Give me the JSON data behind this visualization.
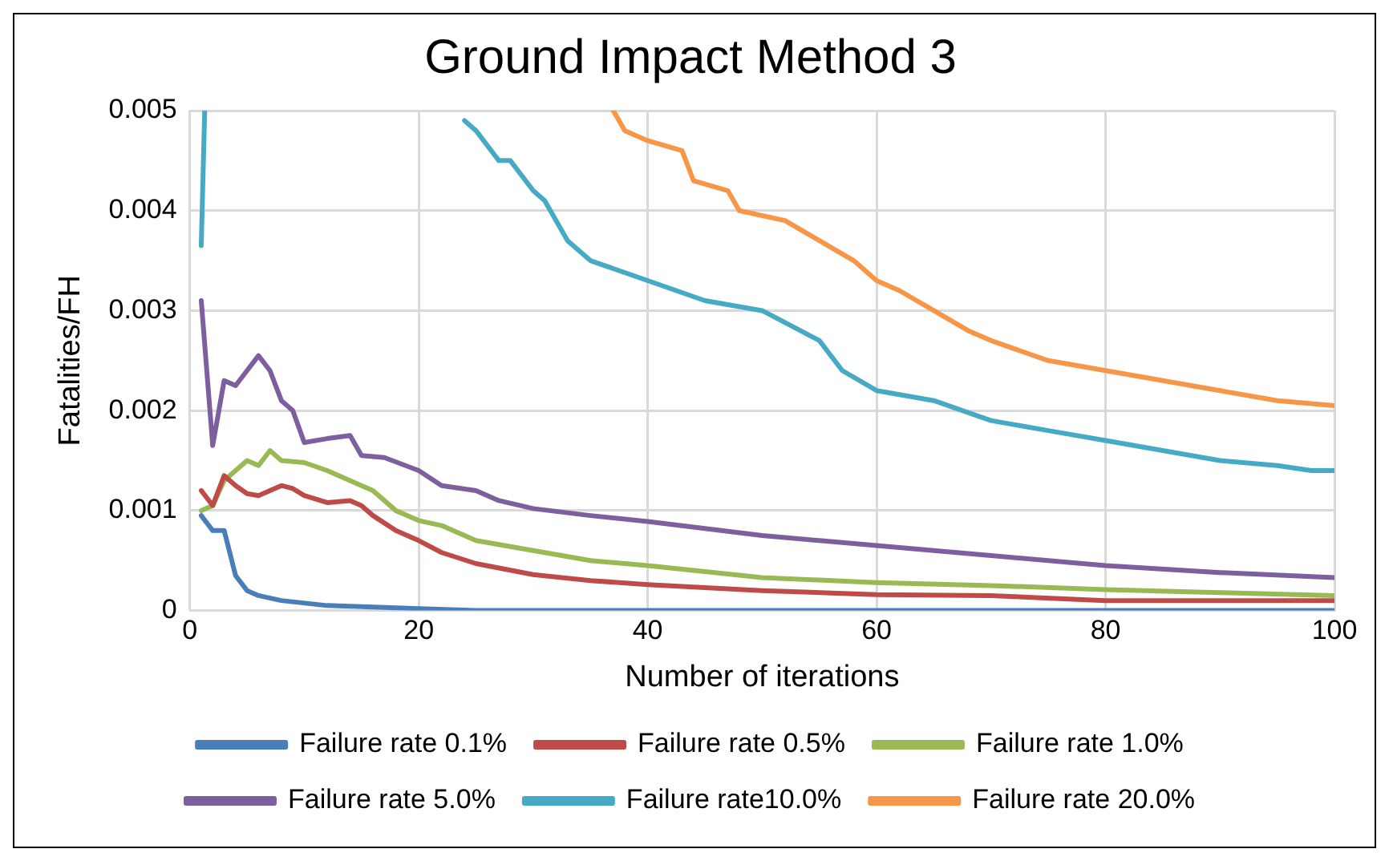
{
  "chart_data": {
    "type": "line",
    "title": "Ground Impact Method 3",
    "xlabel": "Number of iterations",
    "ylabel": "Fatalities/FH",
    "xlim": [
      0,
      100
    ],
    "xticks": [
      0,
      20,
      40,
      60,
      80,
      100
    ],
    "ylim": [
      0,
      0.005
    ],
    "yticks": [
      0,
      0.001,
      0.002,
      0.003,
      0.004,
      0.005
    ],
    "grid": true,
    "legend": "bottom",
    "marker": "none",
    "line_style": "solid",
    "series": [
      {
        "name": "Failure rate 0.1%",
        "color": "#4a7ebb",
        "x": [
          1,
          2,
          3,
          4,
          5,
          6,
          8,
          12,
          25,
          100
        ],
        "values": [
          0.00095,
          0.0008,
          0.0008,
          0.00035,
          0.0002,
          0.00015,
          0.0001,
          5e-05,
          0,
          0
        ]
      },
      {
        "name": "Failure rate 0.5%",
        "color": "#be4b48",
        "x": [
          1,
          2,
          3,
          4,
          5,
          6,
          7,
          8,
          9,
          10,
          12,
          14,
          15,
          16,
          18,
          20,
          22,
          25,
          30,
          35,
          40,
          50,
          60,
          70,
          80,
          90,
          100
        ],
        "values": [
          0.0012,
          0.00105,
          0.00135,
          0.00125,
          0.00117,
          0.00115,
          0.0012,
          0.00125,
          0.00122,
          0.00115,
          0.00108,
          0.0011,
          0.00105,
          0.00095,
          0.0008,
          0.0007,
          0.00058,
          0.00047,
          0.00036,
          0.0003,
          0.00026,
          0.0002,
          0.00016,
          0.00015,
          0.0001,
          0.0001,
          0.0001
        ]
      },
      {
        "name": "Failure rate 1.0%",
        "color": "#98b954",
        "x": [
          1,
          2,
          3,
          4,
          5,
          6,
          7,
          8,
          10,
          12,
          14,
          16,
          18,
          20,
          22,
          25,
          30,
          35,
          40,
          50,
          60,
          70,
          80,
          90,
          100
        ],
        "values": [
          0.001,
          0.00105,
          0.0013,
          0.0014,
          0.0015,
          0.00145,
          0.0016,
          0.0015,
          0.00148,
          0.0014,
          0.0013,
          0.0012,
          0.001,
          0.0009,
          0.00085,
          0.0007,
          0.0006,
          0.0005,
          0.00045,
          0.00033,
          0.00028,
          0.00025,
          0.00021,
          0.00018,
          0.00015
        ]
      },
      {
        "name": "Failure rate 5.0%",
        "color": "#7d5fa0",
        "x": [
          1,
          2,
          3,
          4,
          5,
          6,
          7,
          8,
          9,
          10,
          12,
          14,
          15,
          17,
          20,
          22,
          25,
          27,
          30,
          35,
          40,
          45,
          50,
          55,
          60,
          70,
          80,
          90,
          100
        ],
        "values": [
          0.0031,
          0.00165,
          0.0023,
          0.00225,
          0.0024,
          0.00255,
          0.0024,
          0.0021,
          0.002,
          0.00168,
          0.00172,
          0.00175,
          0.00155,
          0.00153,
          0.0014,
          0.00125,
          0.0012,
          0.0011,
          0.00102,
          0.00095,
          0.00089,
          0.00082,
          0.00075,
          0.0007,
          0.00065,
          0.00055,
          0.00045,
          0.00038,
          0.00033
        ]
      },
      {
        "name": "Failure rate10.0%",
        "color": "#46aac5",
        "x": [
          1,
          1.3,
          10,
          24,
          25,
          27,
          28,
          30,
          31,
          33,
          35,
          40,
          45,
          50,
          55,
          57,
          60,
          65,
          70,
          75,
          80,
          85,
          90,
          95,
          98,
          100
        ],
        "values": [
          0.00365,
          0.005,
          null,
          0.0049,
          0.0048,
          0.0045,
          0.0045,
          0.0042,
          0.0041,
          0.0037,
          0.0035,
          0.0033,
          0.0031,
          0.003,
          0.0027,
          0.0024,
          0.0022,
          0.0021,
          0.0019,
          0.0018,
          0.0017,
          0.0016,
          0.0015,
          0.00145,
          0.0014,
          0.0014
        ]
      },
      {
        "name": "Failure rate 20.0%",
        "color": "#f79646",
        "x": [
          37,
          38,
          40,
          43,
          44,
          47,
          48,
          52,
          55,
          58,
          60,
          62,
          65,
          68,
          70,
          75,
          80,
          85,
          90,
          95,
          100
        ],
        "values": [
          0.005,
          0.0048,
          0.0047,
          0.0046,
          0.0043,
          0.0042,
          0.004,
          0.0039,
          0.0037,
          0.0035,
          0.0033,
          0.0032,
          0.003,
          0.0028,
          0.0027,
          0.0025,
          0.0024,
          0.0023,
          0.0022,
          0.0021,
          0.00205
        ]
      }
    ]
  }
}
